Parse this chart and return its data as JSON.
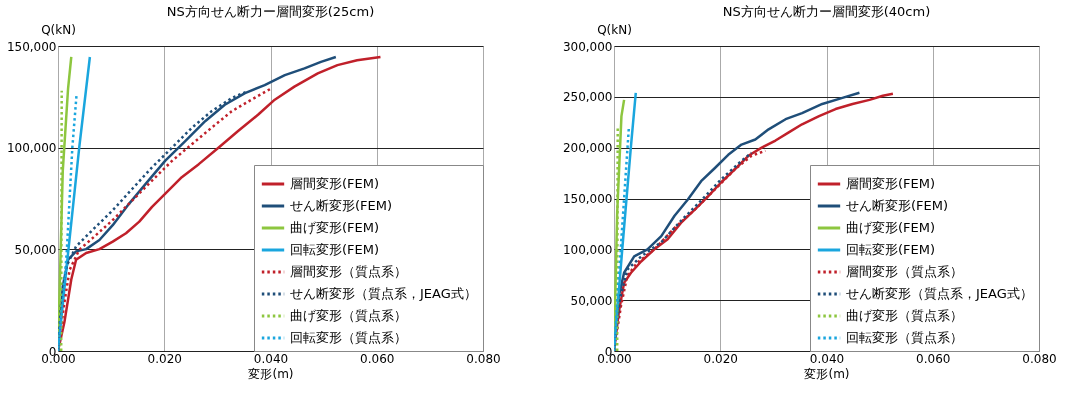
{
  "chart_data": [
    {
      "type": "line",
      "title": "NS方向せん断力ー層間変形(25cm)",
      "xlabel": "変形(m)",
      "ylabel": "Q(kN)",
      "xlim": [
        0,
        0.08
      ],
      "ylim": [
        0,
        150000
      ],
      "xticks": [
        {
          "value": 0,
          "label": "0.000"
        },
        {
          "value": 0.02,
          "label": "0.020"
        },
        {
          "value": 0.04,
          "label": "0.040"
        },
        {
          "value": 0.06,
          "label": "0.060"
        },
        {
          "value": 0.08,
          "label": "0.080"
        }
      ],
      "yticks": [
        {
          "value": 0,
          "label": "0"
        },
        {
          "value": 50000,
          "label": "50,000"
        },
        {
          "value": 100000,
          "label": "100,000"
        },
        {
          "value": 150000,
          "label": "150,000"
        }
      ],
      "grid": true,
      "legend": "bottom right",
      "series": [
        {
          "name": "層間変形(FEM)",
          "color": "#c0202a",
          "line_style": "solid",
          "x": [
            0,
            0.0012,
            0.0025,
            0.0034,
            0.0053,
            0.0078,
            0.0103,
            0.0128,
            0.0153,
            0.0177,
            0.0202,
            0.0233,
            0.0265,
            0.0302,
            0.0339,
            0.0377,
            0.0408,
            0.0445,
            0.0489,
            0.0526,
            0.0563,
            0.0607
          ],
          "values": [
            0,
            14100,
            35200,
            44900,
            48200,
            50100,
            53800,
            57900,
            63600,
            70900,
            77400,
            85500,
            91900,
            100000,
            108200,
            116300,
            123600,
            130000,
            136500,
            140600,
            143000,
            144600
          ]
        },
        {
          "name": "せん断変形(FEM)",
          "color": "#1f4e79",
          "line_style": "solid",
          "x": [
            0,
            0.0009,
            0.0019,
            0.0034,
            0.0053,
            0.0078,
            0.0103,
            0.0134,
            0.0165,
            0.0202,
            0.024,
            0.0277,
            0.0314,
            0.0352,
            0.0389,
            0.0427,
            0.0464,
            0.0495,
            0.0523
          ],
          "values": [
            0,
            31900,
            44900,
            49000,
            50100,
            54600,
            61900,
            72500,
            82200,
            93600,
            103300,
            113000,
            121100,
            126800,
            130800,
            135700,
            139000,
            142200,
            144600
          ]
        },
        {
          "name": "曲げ変形(FEM)",
          "color": "#8dc63f",
          "line_style": "solid",
          "x": [
            0,
            0.0009,
            0.0019,
            0.0025
          ],
          "values": [
            0,
            88700,
            129200,
            144600
          ]
        },
        {
          "name": "回転変形(FEM)",
          "color": "#1aa6de",
          "line_style": "solid",
          "x": [
            0,
            0.0019,
            0.004,
            0.006
          ],
          "values": [
            0,
            48200,
            100100,
            144600
          ]
        },
        {
          "name": "層間変形（質点系）",
          "color": "#c0202a",
          "line_style": "dotted",
          "x": [
            0,
            0.0012,
            0.0022,
            0.004,
            0.0065,
            0.0103,
            0.014,
            0.0177,
            0.0215,
            0.0252,
            0.0289,
            0.0327,
            0.0364,
            0.0402
          ],
          "values": [
            0,
            23800,
            40000,
            49800,
            55500,
            64400,
            74100,
            83800,
            93600,
            101700,
            109800,
            117900,
            123600,
            129200
          ]
        },
        {
          "name": "せん断変形（質点系，JEAG式）",
          "color": "#1f4e79",
          "line_style": "dotted",
          "x": [
            0,
            0.0006,
            0.0016,
            0.0034,
            0.0065,
            0.0103,
            0.014,
            0.0177,
            0.0215,
            0.0252,
            0.0289,
            0.0327,
            0.0358
          ],
          "values": [
            0,
            23800,
            41700,
            51400,
            59500,
            69200,
            79800,
            90300,
            100100,
            109800,
            117900,
            124400,
            127900
          ]
        },
        {
          "name": "曲げ変形（質点系）",
          "color": "#8dc63f",
          "line_style": "dotted",
          "x": [
            0.0006,
            0.0007
          ],
          "values": [
            0,
            128000
          ]
        },
        {
          "name": "回転変形（質点系）",
          "color": "#1aa6de",
          "line_style": "dotted",
          "x": [
            0,
            0.0016,
            0.0027,
            0.0035
          ],
          "values": [
            0,
            46500,
            100100,
            126300
          ]
        }
      ]
    },
    {
      "type": "line",
      "title": "NS方向せん断力ー層間変形(40cm)",
      "xlabel": "変形(m)",
      "ylabel": "Q(kN)",
      "xlim": [
        0,
        0.08
      ],
      "ylim": [
        0,
        300000
      ],
      "xticks": [
        {
          "value": 0,
          "label": "0.000"
        },
        {
          "value": 0.02,
          "label": "0.020"
        },
        {
          "value": 0.04,
          "label": "0.040"
        },
        {
          "value": 0.06,
          "label": "0.060"
        },
        {
          "value": 0.08,
          "label": "0.080"
        }
      ],
      "yticks": [
        {
          "value": 0,
          "label": "0"
        },
        {
          "value": 50000,
          "label": "50,000"
        },
        {
          "value": 100000,
          "label": "100,000"
        },
        {
          "value": 150000,
          "label": "150,000"
        },
        {
          "value": 200000,
          "label": "200,000"
        },
        {
          "value": 250000,
          "label": "250,000"
        },
        {
          "value": 300000,
          "label": "300,000"
        }
      ],
      "grid": true,
      "legend": "bottom right",
      "series": [
        {
          "name": "層間変形(FEM)",
          "color": "#c0202a",
          "line_style": "solid",
          "x": [
            0,
            0.0009,
            0.0019,
            0.0032,
            0.0051,
            0.0076,
            0.0101,
            0.0126,
            0.0152,
            0.0177,
            0.0202,
            0.0228,
            0.0253,
            0.0278,
            0.0304,
            0.0329,
            0.0354,
            0.0386,
            0.0417,
            0.0449,
            0.0481,
            0.0506,
            0.0525
          ],
          "values": [
            0,
            38000,
            67000,
            77000,
            88000,
            100000,
            110000,
            126000,
            139000,
            152000,
            166000,
            179000,
            192000,
            200000,
            207000,
            215000,
            223000,
            231000,
            238000,
            243000,
            247000,
            251000,
            253000
          ]
        },
        {
          "name": "せん断変形(FEM)",
          "color": "#1f4e79",
          "line_style": "solid",
          "x": [
            0,
            0.0009,
            0.0019,
            0.0038,
            0.0063,
            0.0089,
            0.0114,
            0.0139,
            0.0164,
            0.019,
            0.0215,
            0.024,
            0.0266,
            0.0291,
            0.0323,
            0.0354,
            0.0392,
            0.043,
            0.0462
          ],
          "values": [
            0,
            54000,
            77000,
            93000,
            100000,
            113000,
            133000,
            149000,
            167000,
            180000,
            193000,
            203000,
            208000,
            218000,
            228000,
            234000,
            243000,
            249000,
            254000
          ]
        },
        {
          "name": "曲げ変形(FEM)",
          "color": "#8dc63f",
          "line_style": "solid",
          "x": [
            0,
            0.0006,
            0.0014,
            0.0019
          ],
          "values": [
            0,
            136000,
            231000,
            247000
          ]
        },
        {
          "name": "回転変形(FEM)",
          "color": "#1aa6de",
          "line_style": "solid",
          "x": [
            0,
            0.0016,
            0.0032,
            0.0041
          ],
          "values": [
            0,
            103000,
            202000,
            254000
          ]
        },
        {
          "name": "層間変形（質点系）",
          "color": "#c0202a",
          "line_style": "dotted",
          "x": [
            0,
            0.0013,
            0.0025,
            0.0044,
            0.0076,
            0.0114,
            0.0152,
            0.019,
            0.0228,
            0.0259,
            0.0285
          ],
          "values": [
            0,
            44000,
            74000,
            87000,
            100000,
            121000,
            139000,
            159000,
            179000,
            192000,
            197000
          ]
        },
        {
          "name": "せん断変形（質点系，JEAG式）",
          "color": "#1f4e79",
          "line_style": "dotted",
          "x": [
            0,
            0.0011,
            0.0025,
            0.0051,
            0.0089,
            0.0126,
            0.0164,
            0.0202,
            0.024,
            0.0259
          ],
          "values": [
            0,
            51000,
            80000,
            93000,
            107000,
            128000,
            148000,
            169000,
            187000,
            195000
          ]
        },
        {
          "name": "曲げ変形（質点系）",
          "color": "#8dc63f",
          "line_style": "dotted",
          "x": [
            0.0006,
            0.0007
          ],
          "values": [
            0,
            221000
          ]
        },
        {
          "name": "回転変形（質点系）",
          "color": "#1aa6de",
          "line_style": "dotted",
          "x": [
            0,
            0.0013,
            0.0028
          ],
          "values": [
            0,
            103000,
            220000
          ]
        }
      ]
    }
  ]
}
